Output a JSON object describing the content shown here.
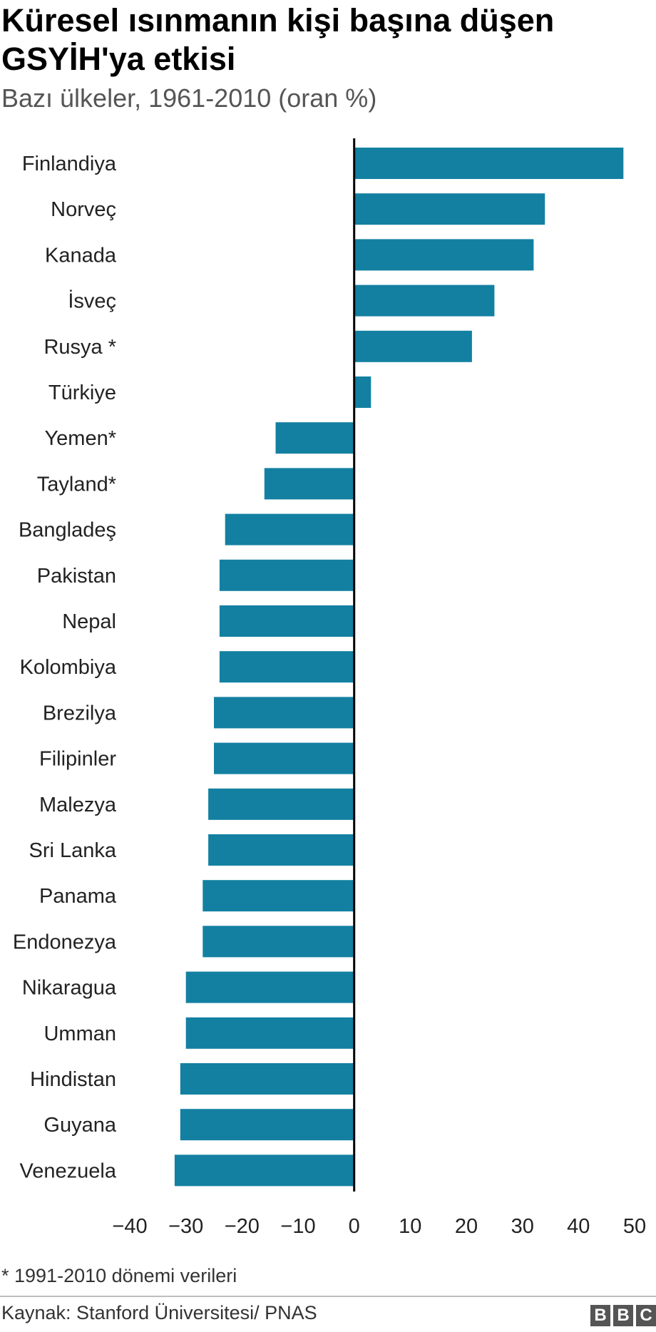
{
  "header": {
    "title": "Küresel ısınmanın kişi başına düşen GSYİH'ya etkisi",
    "subtitle": "Bazı ülkeler, 1961-2010 (oran %)"
  },
  "footer": {
    "note": "* 1991-2010 dönemi verileri",
    "source": "Kaynak: Stanford Üniversitesi/ PNAS",
    "logo_letters": [
      "B",
      "B",
      "C"
    ]
  },
  "colors": {
    "bar": "#1380A1",
    "axis": "#000000",
    "text": "#222222"
  },
  "chart_data": {
    "type": "bar",
    "orientation": "horizontal",
    "title": "Küresel ısınmanın kişi başına düşen GSYİH'ya etkisi",
    "subtitle": "Bazı ülkeler, 1961-2010 (oran %)",
    "xlabel": "",
    "ylabel": "",
    "xlim": [
      -40,
      50
    ],
    "ticks": [
      -40,
      -30,
      -20,
      -10,
      0,
      10,
      20,
      30,
      40,
      50
    ],
    "tick_labels": [
      "−40",
      "−30",
      "−20",
      "−10",
      "0",
      "10",
      "20",
      "30",
      "40",
      "50"
    ],
    "grid": false,
    "legend": "none",
    "categories": [
      "Finlandiya",
      "Norveç",
      "Kanada",
      "İsveç",
      "Rusya *",
      "Türkiye",
      "Yemen*",
      "Tayland*",
      "Bangladeş",
      "Pakistan",
      "Nepal",
      "Kolombiya",
      "Brezilya",
      "Filipinler",
      "Malezya",
      "Sri Lanka",
      "Panama",
      "Endonezya",
      "Nikaragua",
      "Umman",
      "Hindistan",
      "Guyana",
      "Venezuela"
    ],
    "values": [
      48,
      34,
      32,
      25,
      21,
      3,
      -14,
      -16,
      -23,
      -24,
      -24,
      -24,
      -25,
      -25,
      -26,
      -26,
      -27,
      -27,
      -30,
      -30,
      -31,
      -31,
      -32
    ]
  }
}
